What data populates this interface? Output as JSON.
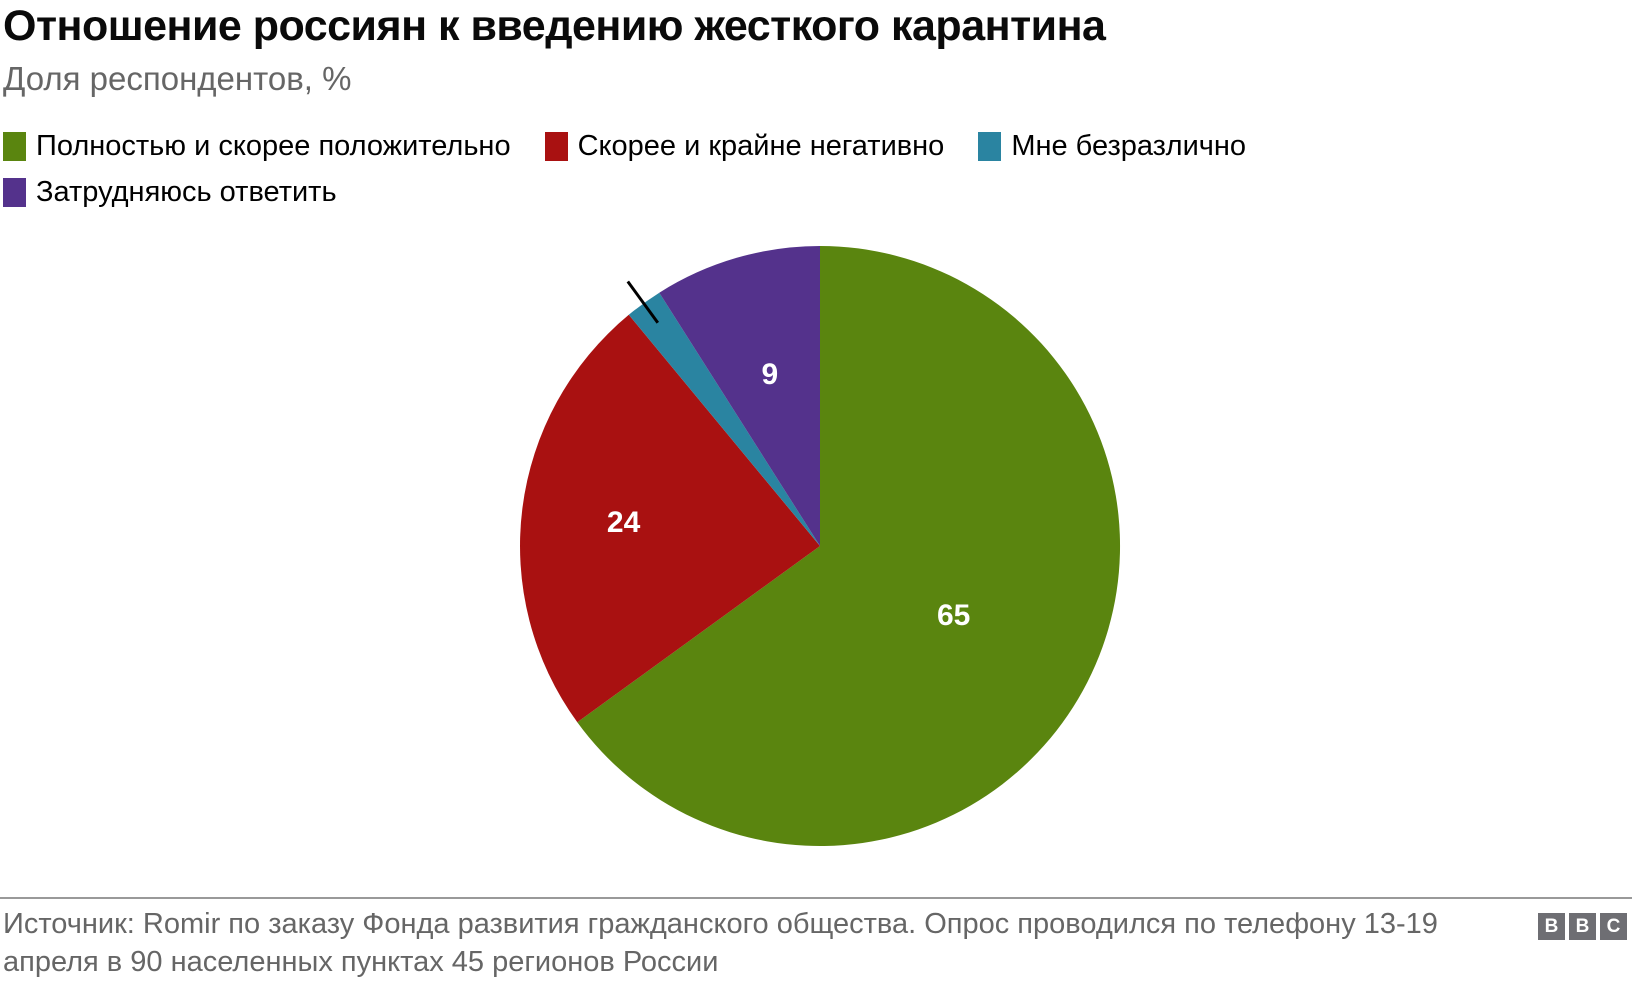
{
  "chart_data": {
    "type": "pie",
    "title": "Отношение россиян к введению жесткого карантина",
    "subtitle": "Доля респондентов, %",
    "unit": "%",
    "start_angle_deg": 0,
    "direction": "clockwise",
    "legend_position": "top-left",
    "slices": [
      {
        "label": "Полностью и скорее положительно",
        "value": 65,
        "color": "#5a850f",
        "show_label": true,
        "leader_line": false
      },
      {
        "label": "Скорее и крайне негативно",
        "value": 24,
        "color": "#a91111",
        "show_label": true,
        "leader_line": false
      },
      {
        "label": "Мне безразлично",
        "value": 2,
        "color": "#2a84a1",
        "show_label": false,
        "leader_line": true
      },
      {
        "label": "Затрудняюсь ответить",
        "value": 9,
        "color": "#54328c",
        "show_label": true,
        "leader_line": false
      }
    ]
  },
  "footer": {
    "source": "Источник: Romir по заказу Фонда развития гражданского общества. Опрос проводился по телефону 13-19 апреля в 90 населенных пунктах 45 регионов России",
    "logo": [
      "B",
      "B",
      "C"
    ]
  },
  "colors": {
    "title_text": "#0a0a0a",
    "subtitle_text": "#666666",
    "source_text": "#666666",
    "divider": "#999999",
    "logo_bg": "#6e6e73",
    "slice_label_text": "#ffffff",
    "leader_line": "#000000"
  }
}
